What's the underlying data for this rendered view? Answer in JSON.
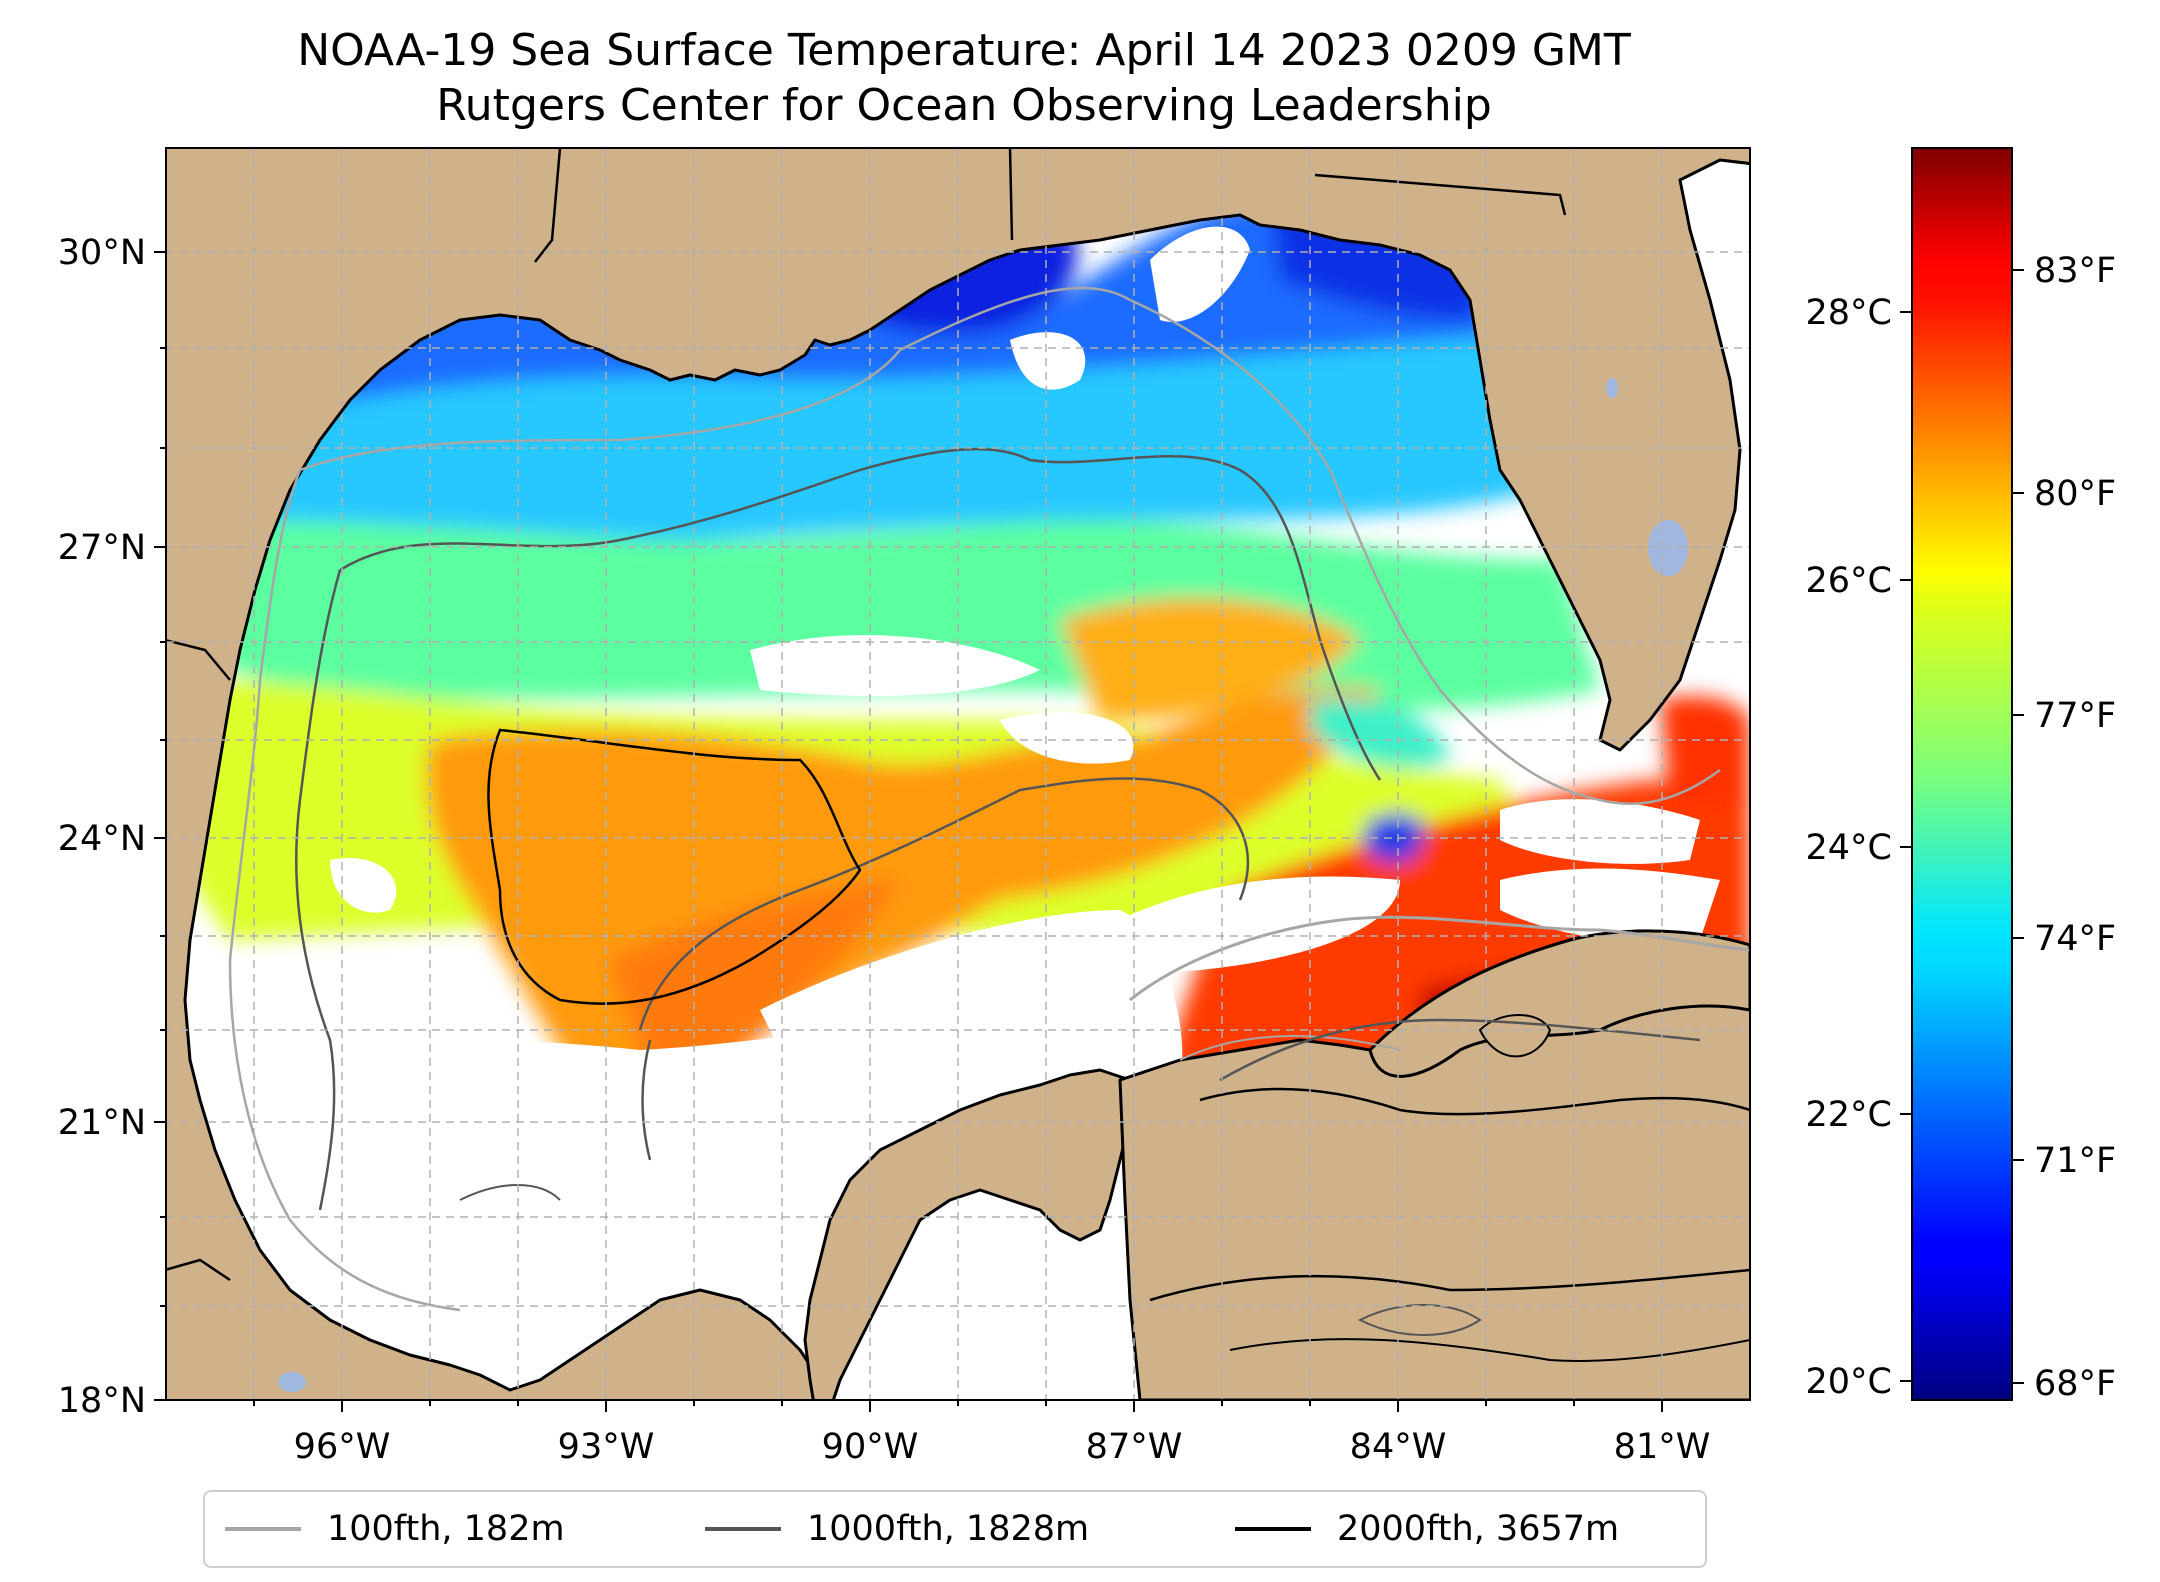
{
  "title": {
    "line1": "NOAA-19 Sea Surface Temperature: April 14 2023 0209 GMT",
    "line2": "Rutgers Center for Ocean Observing Leadership"
  },
  "map": {
    "lon_range": [
      -98,
      -80.0
    ],
    "lat_range": [
      18,
      31
    ],
    "lat_ticks": [
      "30°N",
      "27°N",
      "24°N",
      "21°N",
      "18°N"
    ],
    "lon_ticks": [
      "96°W",
      "93°W",
      "90°W",
      "87°W",
      "84°W",
      "81°W"
    ],
    "colors": {
      "land": "#cfb28a",
      "no_data": "#ffffff",
      "coastline": "#000000",
      "lakes": "#a0b8e0"
    }
  },
  "colorbar": {
    "colormap": "jet",
    "range_celsius": [
      19.8,
      29.3
    ],
    "celsius_ticks": [
      "28°C",
      "26°C",
      "24°C",
      "22°C",
      "20°C"
    ],
    "fahrenheit_ticks": [
      "83°F",
      "80°F",
      "77°F",
      "74°F",
      "71°F",
      "68°F"
    ]
  },
  "legend": {
    "items": [
      {
        "label": "100fth, 182m",
        "color": "#a6a6a6"
      },
      {
        "label": "1000fth, 1828m",
        "color": "#555555"
      },
      {
        "label": "2000fth, 3657m",
        "color": "#000000"
      }
    ]
  }
}
